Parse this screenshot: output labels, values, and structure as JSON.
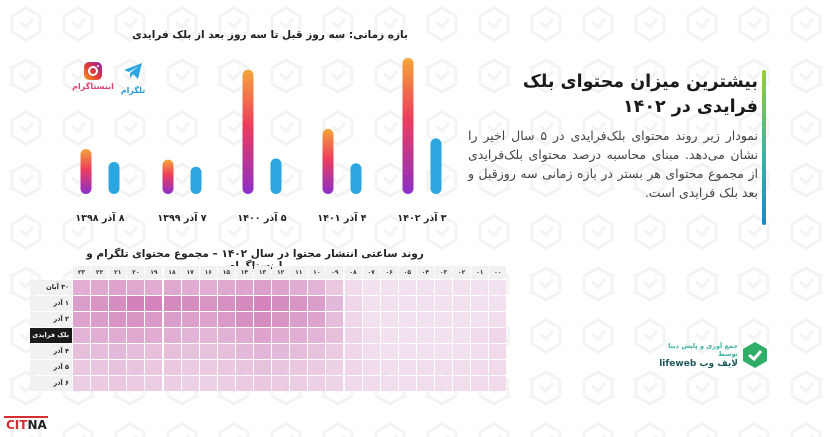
{
  "chart_data": [
    {
      "type": "bar",
      "title": "بازه زمانی: سه روز قبل تا سه روز بعد از بلک فرایدی",
      "categories": [
        "۸ آذر ۱۳۹۸",
        "۷ آذر ۱۳۹۹",
        "۵ آذر ۱۴۰۰",
        "۴ آذر ۱۴۰۱",
        "۳ آذر ۱۴۰۲"
      ],
      "series": [
        {
          "name": "اینستاگرام",
          "values": [
            38,
            29,
            105,
            55,
            115
          ]
        },
        {
          "name": "تلگرام",
          "values": [
            27,
            23,
            30,
            26,
            47
          ]
        }
      ],
      "ylim": [
        0,
        120
      ],
      "legend_position": "top-left"
    },
    {
      "type": "heatmap",
      "title": "روند ساعتی انتشار محتوا در سال ۱۴۰۲ – مجموع محتوای تلگرام و اینستاگرام",
      "columns": [
        "۲۳",
        "۲۲",
        "۲۱",
        "۲۰",
        "۱۹",
        "۱۸",
        "۱۷",
        "۱۶",
        "۱۵",
        "۱۴",
        "۱۳",
        "۱۲",
        "۱۱",
        "۱۰",
        "۰۹",
        "۰۸",
        "۰۷",
        "۰۶",
        "۰۵",
        "۰۴",
        "۰۳",
        "۰۲",
        "۰۱",
        "۰۰"
      ],
      "rows": [
        "۳۰ آبان",
        "۱ آذر",
        "۲ آذر",
        "بلک فرایدی",
        "۴ آذر",
        "۵ آذر",
        "۶ آذر"
      ],
      "highlight_row": "بلک فرایدی",
      "values": [
        [
          0.38,
          0.42,
          0.45,
          0.42,
          0.4,
          0.42,
          0.4,
          0.38,
          0.42,
          0.45,
          0.48,
          0.45,
          0.4,
          0.35,
          0.22,
          0.1,
          0.05,
          0.05,
          0.05,
          0.05,
          0.05,
          0.05,
          0.05,
          0.05
        ],
        [
          0.5,
          0.55,
          0.6,
          0.68,
          0.65,
          0.62,
          0.6,
          0.55,
          0.58,
          0.62,
          0.65,
          0.6,
          0.55,
          0.5,
          0.32,
          0.12,
          0.06,
          0.05,
          0.05,
          0.05,
          0.05,
          0.05,
          0.05,
          0.06
        ],
        [
          0.45,
          0.5,
          0.55,
          0.55,
          0.52,
          0.5,
          0.48,
          0.45,
          0.52,
          0.58,
          0.6,
          0.55,
          0.5,
          0.45,
          0.3,
          0.12,
          0.06,
          0.05,
          0.05,
          0.05,
          0.05,
          0.05,
          0.06,
          0.08
        ],
        [
          0.35,
          0.38,
          0.4,
          0.42,
          0.4,
          0.38,
          0.35,
          0.33,
          0.36,
          0.4,
          0.45,
          0.4,
          0.38,
          0.35,
          0.28,
          0.14,
          0.08,
          0.06,
          0.06,
          0.06,
          0.06,
          0.06,
          0.1,
          0.12
        ],
        [
          0.28,
          0.3,
          0.32,
          0.3,
          0.28,
          0.28,
          0.26,
          0.26,
          0.28,
          0.32,
          0.34,
          0.32,
          0.3,
          0.26,
          0.2,
          0.12,
          0.08,
          0.06,
          0.06,
          0.06,
          0.06,
          0.06,
          0.08,
          0.1
        ],
        [
          0.22,
          0.24,
          0.26,
          0.24,
          0.22,
          0.22,
          0.2,
          0.2,
          0.22,
          0.24,
          0.26,
          0.24,
          0.22,
          0.2,
          0.16,
          0.12,
          0.09,
          0.08,
          0.08,
          0.08,
          0.08,
          0.08,
          0.09,
          0.1
        ],
        [
          0.18,
          0.2,
          0.22,
          0.2,
          0.18,
          0.18,
          0.17,
          0.17,
          0.18,
          0.2,
          0.22,
          0.2,
          0.18,
          0.17,
          0.14,
          0.11,
          0.09,
          0.08,
          0.08,
          0.08,
          0.08,
          0.08,
          0.09,
          0.1
        ]
      ]
    }
  ],
  "legend": {
    "instagram": "اینستاگرام",
    "telegram": "تلگرام"
  },
  "info": {
    "title": "بیشترین میزان محتوای بلک فرایدی در ۱۴۰۲",
    "body": "نمودار زیر روند محتوای بلک‌فرایدی در ۵ سال اخیر را نشان می‌دهد. مبنای محاسبه درصد محتوای بلک‌فرایدی از مجموع محتوای هر بستر در بازه زمانی سه روزقبل و بعد بلک فرایدی است."
  },
  "brand": {
    "tagline": "جمع آوری و پایش دیتا توسط",
    "name": "لایف وب",
    "latin": "lifeweb"
  },
  "watermark": {
    "part1": "CIT",
    "part2": "NA"
  },
  "colors": {
    "instagram_top": "#f4a53a",
    "instagram_mid": "#ec3d5c",
    "instagram_bottom": "#8b2fc9",
    "telegram_top": "#2ca6e0",
    "telegram_bottom": "#2ca6e0",
    "heat_max": "#c14f9e",
    "heat_min": "#f5eaf3",
    "accent": "#3bb3a3"
  }
}
